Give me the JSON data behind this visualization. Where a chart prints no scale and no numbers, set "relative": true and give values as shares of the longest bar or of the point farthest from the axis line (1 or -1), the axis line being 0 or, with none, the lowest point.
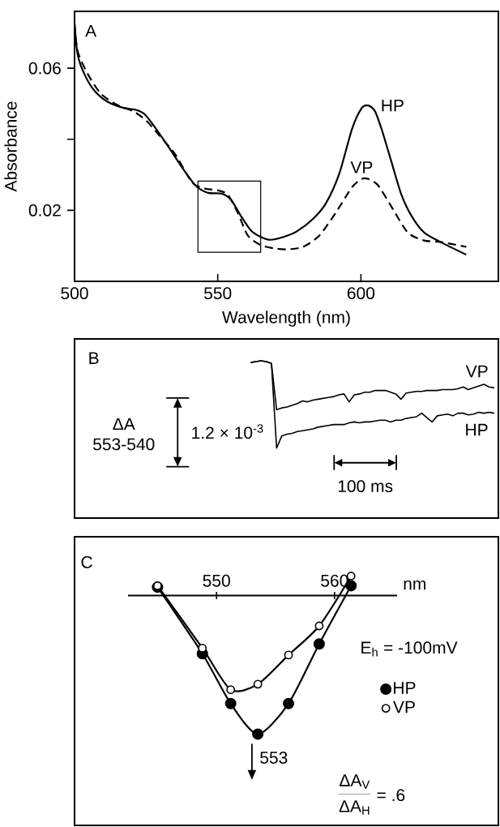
{
  "chart_data": [
    {
      "type": "line",
      "xlabel": "Wavelength (nm)",
      "ylabel": "Absorbance",
      "annotations": [
        "A"
      ],
      "xlim": [
        500,
        648
      ],
      "ylim": [
        0,
        0.076
      ],
      "xticks": [
        500,
        550,
        600
      ],
      "yticks": [
        0.02,
        {
          "value": 0.04,
          "label": null
        },
        0.06
      ],
      "series": [
        {
          "name": "HP",
          "color": "#000000",
          "line_style": "solid",
          "x": [
            500,
            501.1,
            503.4,
            506.8,
            511.4,
            517.1,
            521.7,
            524.5,
            528.5,
            533.1,
            537.6,
            542.2,
            546.7,
            551.3,
            554.7,
            558.1,
            561.6,
            565.0,
            568.4,
            573.0,
            577.5,
            583.2,
            587.8,
            592.4,
            596.9,
            600.3,
            602.6,
            604.9,
            607.2,
            610.6,
            614.0,
            617.4,
            622.0,
            627.7,
            636.8
          ],
          "values": [
            0.0725,
            0.0638,
            0.0584,
            0.0538,
            0.0506,
            0.0488,
            0.0482,
            0.047,
            0.0429,
            0.0375,
            0.032,
            0.027,
            0.0249,
            0.0247,
            0.0229,
            0.0184,
            0.0143,
            0.0125,
            0.0117,
            0.0125,
            0.014,
            0.0175,
            0.022,
            0.0302,
            0.0429,
            0.0488,
            0.0495,
            0.0479,
            0.0429,
            0.0338,
            0.0247,
            0.0188,
            0.0138,
            0.0111,
            0.0075
          ]
        },
        {
          "name": "VP",
          "color": "#000000",
          "line_style": "dashed",
          "x": [
            500,
            501.1,
            504.6,
            509.1,
            514.8,
            520.5,
            525.1,
            529.6,
            535.3,
            541.0,
            545.6,
            550.2,
            553.6,
            557.0,
            560.5,
            565.0,
            569.6,
            574.1,
            579.8,
            585.5,
            591.2,
            596.9,
            600.3,
            602.6,
            606.0,
            610.6,
            616.3,
            622.0,
            627.7,
            636.8
          ],
          "values": [
            0.0725,
            0.0647,
            0.0584,
            0.0529,
            0.0497,
            0.0479,
            0.0452,
            0.0411,
            0.0356,
            0.0279,
            0.0261,
            0.0256,
            0.0243,
            0.0193,
            0.0129,
            0.0102,
            0.0093,
            0.009,
            0.0097,
            0.0129,
            0.0193,
            0.0265,
            0.0288,
            0.0288,
            0.027,
            0.0211,
            0.0138,
            0.0115,
            0.0111,
            0.0097
          ]
        }
      ]
    },
    {
      "type": "line",
      "relative": true,
      "annotations": [
        "B",
        "ΔA 553-540",
        "1.2 × 10$^{-3}$",
        "100 ms"
      ],
      "categories": [
        null,
        null,
        null,
        null,
        null,
        null,
        null,
        null,
        null,
        null,
        null,
        null,
        null,
        null,
        null,
        null,
        null,
        null,
        null,
        null,
        null,
        null,
        null,
        null,
        null,
        null,
        null,
        null,
        null,
        null,
        null,
        null,
        null,
        null,
        null,
        null,
        null,
        null,
        null,
        null,
        null,
        null,
        null,
        null,
        null,
        null,
        null,
        null
      ],
      "series": [
        {
          "name": "VP",
          "color": "#000000",
          "values": [
            0.98,
            0.99,
            1.0,
            0.99,
            0.97,
            0.44,
            0.46,
            0.47,
            0.49,
            0.51,
            0.54,
            0.53,
            0.55,
            0.56,
            0.57,
            0.58,
            0.59,
            0.61,
            0.62,
            0.53,
            0.61,
            0.62,
            0.64,
            0.64,
            0.66,
            0.66,
            0.66,
            0.64,
            0.62,
            0.56,
            0.63,
            0.64,
            0.65,
            0.65,
            0.66,
            0.66,
            0.66,
            0.67,
            0.67,
            0.67,
            0.68,
            0.7,
            0.67,
            0.69,
            0.71,
            0.73,
            0.7,
            0.69
          ]
        },
        {
          "name": "HP",
          "color": "#000000",
          "values": [
            0.98,
            0.99,
            1.0,
            0.99,
            0.97,
            0.0,
            0.14,
            0.16,
            0.17,
            0.19,
            0.2,
            0.21,
            0.22,
            0.24,
            0.25,
            0.26,
            0.27,
            0.27,
            0.27,
            0.29,
            0.3,
            0.29,
            0.3,
            0.3,
            0.31,
            0.32,
            0.32,
            0.3,
            0.32,
            0.32,
            0.34,
            0.35,
            0.36,
            0.4,
            0.35,
            0.3,
            0.37,
            0.38,
            0.39,
            0.37,
            0.4,
            0.4,
            0.38,
            0.39,
            0.41,
            0.4,
            0.41,
            0.4
          ]
        }
      ]
    },
    {
      "type": "line",
      "relative": true,
      "xlabel": "nm",
      "xlim": [
        542.5,
        565.3
      ],
      "xticks": [
        550,
        560
      ],
      "marker": "circle",
      "legend": "right",
      "annotations": [
        "C",
        "E$_{h}$ = -100mV",
        {
          "text": "553",
          "x": 553,
          "y": -1
        },
        "ΔA$_{V}$",
        "ΔA$_{H}$",
        "= .6"
      ],
      "series": [
        {
          "name": "HP",
          "color": "#000000",
          "x": [
            545.0,
            548.8,
            551.2,
            553.5,
            556.1,
            558.7,
            561.4
          ],
          "values": [
            0.06,
            -0.42,
            -0.78,
            -1.0,
            -0.78,
            -0.35,
            0.07
          ]
        },
        {
          "name": "VP",
          "color": "#000000",
          "x": [
            545.0,
            548.8,
            551.2,
            553.5,
            556.1,
            558.7,
            561.4
          ],
          "values": [
            0.07,
            -0.38,
            -0.68,
            -0.64,
            -0.43,
            -0.22,
            0.14
          ]
        }
      ]
    }
  ]
}
